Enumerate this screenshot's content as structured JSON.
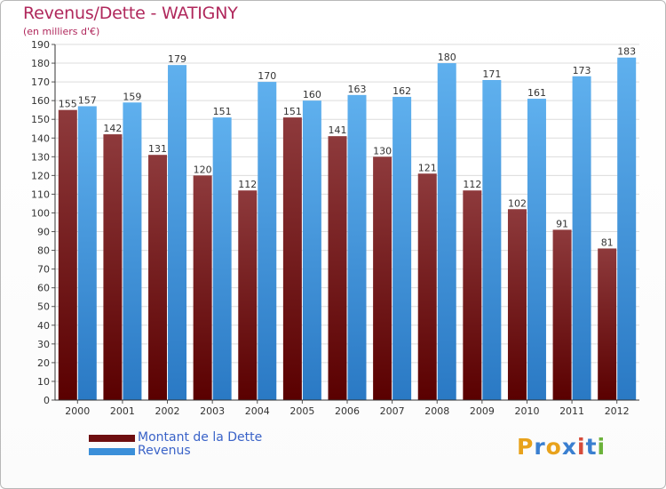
{
  "chart_data": {
    "type": "bar",
    "title": "Revenus/Dette - WATIGNY",
    "subtitle": "(en milliers d'€)",
    "categories": [
      "2000",
      "2001",
      "2002",
      "2003",
      "2004",
      "2005",
      "2006",
      "2007",
      "2008",
      "2009",
      "2010",
      "2011",
      "2012"
    ],
    "series": [
      {
        "name": "Montant de la Dette",
        "color": "#6e0e10",
        "values": [
          155,
          142,
          131,
          120,
          112,
          151,
          141,
          130,
          121,
          112,
          102,
          91,
          81
        ]
      },
      {
        "name": "Revenus",
        "color": "#3b8fd9",
        "values": [
          157,
          159,
          179,
          151,
          170,
          160,
          163,
          162,
          180,
          171,
          161,
          173,
          183
        ]
      }
    ],
    "ylim": [
      0,
      190
    ],
    "ytick_step": 10,
    "grid": true,
    "legend_position": "bottom-left"
  },
  "brand": {
    "letters": [
      "P",
      "r",
      "o",
      "x",
      "i",
      "t",
      "i"
    ],
    "colors": [
      "#e8a21c",
      "#3a7fd0",
      "#e8a21c",
      "#3a7fd0",
      "#d64b3a",
      "#3a7fd0",
      "#6bb23a"
    ]
  }
}
